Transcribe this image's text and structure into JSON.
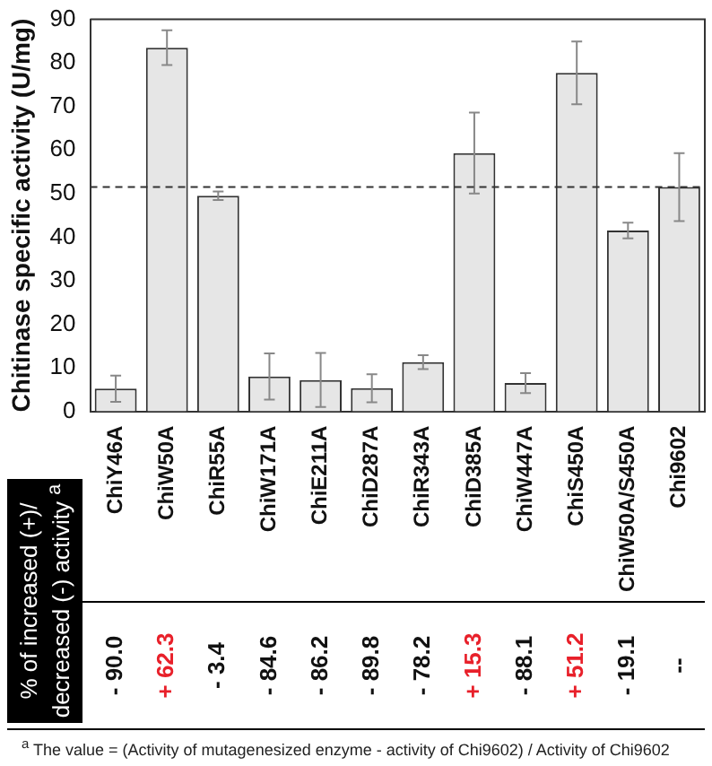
{
  "chart_data": {
    "type": "bar",
    "ylabel": "Chitinase specific activity (U/mg)",
    "categories": [
      "ChiY46A",
      "ChiW50A",
      "ChiR55A",
      "ChiW171A",
      "ChiE211A",
      "ChiD287A",
      "ChiR343A",
      "ChiD385A",
      "ChiW447A",
      "ChiS450A",
      "ChiW50A/S450A",
      "Chi9602"
    ],
    "values": [
      5.2,
      83.5,
      49.5,
      8,
      7.2,
      5.3,
      11.3,
      59.3,
      6.5,
      77.7,
      41.5,
      51.5
    ],
    "errors": [
      3,
      4,
      1,
      5.3,
      6.2,
      3.2,
      1.6,
      9.3,
      2.3,
      7.2,
      1.8,
      7.8
    ],
    "color": "#e6e6e6",
    "ylim": [
      0,
      90
    ],
    "yticks": [
      0,
      10,
      20,
      30,
      40,
      50,
      60,
      70,
      80,
      90
    ],
    "grid": false,
    "legend": false,
    "ref_lines": [
      {
        "axis": "y",
        "value": 51.5,
        "line_style": "dashed",
        "color": "#333333"
      }
    ],
    "annotations": [
      "% of increased (+)/ decreased (-) activity $^{a}$",
      "- 90.0",
      "+ 62.3",
      "- 3.4",
      "- 84.6",
      "- 86.2",
      "- 89.8",
      "- 78.2",
      "+ 15.3",
      "- 88.1",
      "+ 51.2",
      "- 19.1",
      "--",
      "$^{a}$ The value = (Activity of mutagenesized enzyme - activity of Chi9602) / Activity of Chi9602"
    ]
  }
}
